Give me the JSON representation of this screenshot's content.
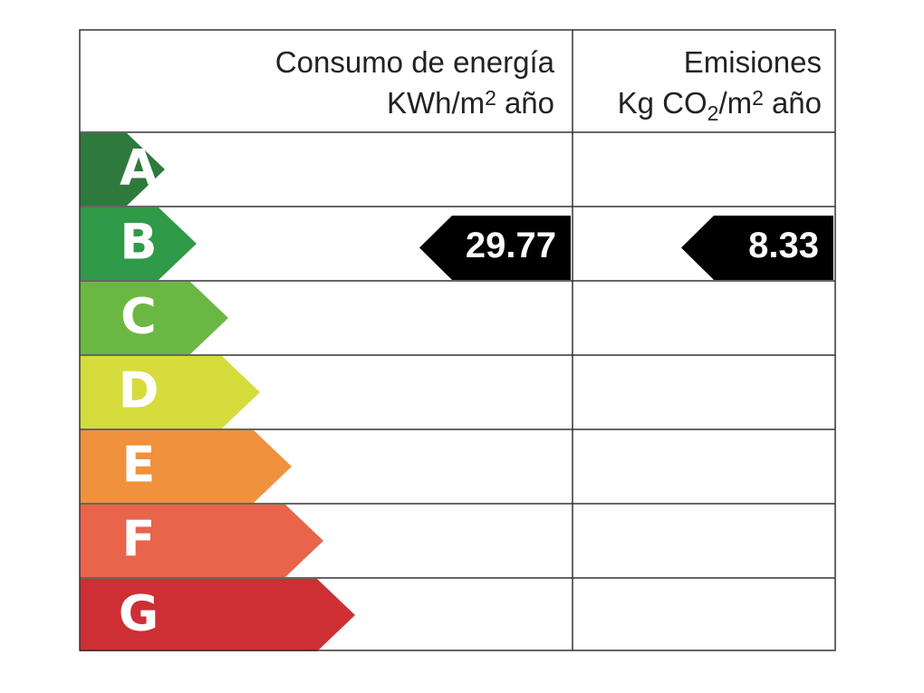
{
  "header": {
    "consumption_title": "Consumo de energía",
    "consumption_unit": [
      "KWh/m",
      "2",
      "año"
    ],
    "emissions_title": "Emisiones",
    "emissions_unit": [
      "Kg CO",
      "2",
      "/m",
      "2",
      "año"
    ]
  },
  "ratings": [
    {
      "letter": "A",
      "color": "#2e7a3c"
    },
    {
      "letter": "B",
      "color": "#2f9a47"
    },
    {
      "letter": "C",
      "color": "#6bb744"
    },
    {
      "letter": "D",
      "color": "#d6dc3b"
    },
    {
      "letter": "E",
      "color": "#f0913d"
    },
    {
      "letter": "F",
      "color": "#e8644b"
    },
    {
      "letter": "G",
      "color": "#cd2f35"
    }
  ],
  "consumption": {
    "value": 29.77,
    "rating": "B"
  },
  "emissions": {
    "value": 8.33,
    "rating": "B"
  }
}
